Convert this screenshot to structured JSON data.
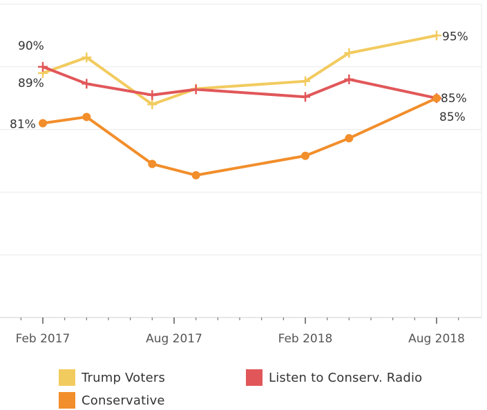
{
  "chart_data": {
    "type": "line",
    "x": [
      "2017-02",
      "2017-04",
      "2017-07",
      "2017-09",
      "2018-02",
      "2018-04",
      "2018-08"
    ],
    "x_ticks": [
      "Feb 2017",
      "Aug 2017",
      "Feb 2018",
      "Aug 2018"
    ],
    "ylim": [
      0.5,
      1.0
    ],
    "grid": true,
    "legend_position": "bottom",
    "series": [
      {
        "name": "Trump Voters",
        "color": "#F2CB5F",
        "marker": "plus",
        "values": [
          0.89,
          0.915,
          0.84,
          0.865,
          0.877,
          0.922,
          0.95
        ],
        "labels": [
          {
            "index": 0,
            "text": "89%"
          },
          {
            "index": 6,
            "text": "95%"
          }
        ]
      },
      {
        "name": "Listen to Conserv. Radio",
        "color": "#E15759",
        "marker": "plus",
        "values": [
          0.9,
          0.873,
          0.855,
          0.864,
          0.852,
          0.88,
          0.85
        ],
        "labels": [
          {
            "index": 0,
            "text": "90%"
          },
          {
            "index": 6,
            "text": "85%"
          }
        ]
      },
      {
        "name": "Conservative",
        "color": "#F28E2B",
        "marker": "circle",
        "values": [
          0.81,
          0.82,
          0.745,
          0.727,
          0.758,
          0.786,
          0.85
        ],
        "labels": [
          {
            "index": 0,
            "text": "81%"
          },
          {
            "index": 6,
            "text": "85%"
          }
        ]
      }
    ]
  }
}
